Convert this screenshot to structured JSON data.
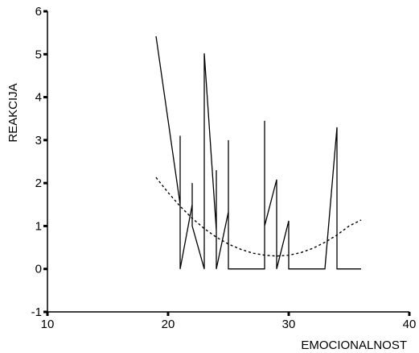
{
  "chart_data": {
    "type": "line",
    "xlabel": "EMOCIONALNOST",
    "ylabel": "REAKCIJA",
    "xlim": [
      10,
      40
    ],
    "ylim": [
      -1,
      6
    ],
    "x_ticks": [
      {
        "value": 10,
        "label": "10"
      },
      {
        "value": 20,
        "label": "20"
      },
      {
        "value": 30,
        "label": "30"
      },
      {
        "value": 40,
        "label": "40"
      }
    ],
    "y_ticks": [
      {
        "value": -1,
        "label": "-1"
      },
      {
        "value": 0,
        "label": "0"
      },
      {
        "value": 1,
        "label": "1"
      },
      {
        "value": 2,
        "label": "2"
      },
      {
        "value": 3,
        "label": "3"
      },
      {
        "value": 4,
        "label": "4"
      },
      {
        "value": 5,
        "label": "5"
      },
      {
        "value": 6,
        "label": "6"
      }
    ],
    "grid": false,
    "series": [
      {
        "style": "solid",
        "color": "#000000",
        "points": [
          [
            19,
            5.42
          ],
          [
            21,
            1.5
          ],
          [
            21,
            3.1
          ],
          [
            21,
            0
          ],
          [
            22,
            1.5
          ],
          [
            22,
            2.0
          ],
          [
            22,
            1.0
          ],
          [
            23,
            0
          ],
          [
            23,
            5.02
          ],
          [
            24,
            0.9
          ],
          [
            24,
            2.3
          ],
          [
            24,
            0
          ],
          [
            25,
            1.33
          ],
          [
            25,
            3.0
          ],
          [
            25,
            0
          ],
          [
            28,
            0
          ],
          [
            28,
            3.45
          ],
          [
            28,
            1.0
          ],
          [
            29,
            2.08
          ],
          [
            29,
            0
          ],
          [
            30,
            1.12
          ],
          [
            30,
            0
          ],
          [
            33,
            0
          ],
          [
            34,
            3.3
          ],
          [
            34,
            0
          ],
          [
            36,
            0
          ]
        ]
      },
      {
        "style": "dotted",
        "color": "#000000",
        "points": [
          [
            19,
            2.13
          ],
          [
            20,
            1.78
          ],
          [
            21,
            1.46
          ],
          [
            22,
            1.18
          ],
          [
            23,
            0.94
          ],
          [
            24,
            0.74
          ],
          [
            25,
            0.58
          ],
          [
            26,
            0.46
          ],
          [
            27,
            0.37
          ],
          [
            28,
            0.32
          ],
          [
            29,
            0.3
          ],
          [
            30,
            0.32
          ],
          [
            31,
            0.38
          ],
          [
            32,
            0.48
          ],
          [
            33,
            0.62
          ],
          [
            34,
            0.79
          ],
          [
            35,
            1.0
          ],
          [
            36,
            1.14
          ]
        ]
      }
    ]
  }
}
